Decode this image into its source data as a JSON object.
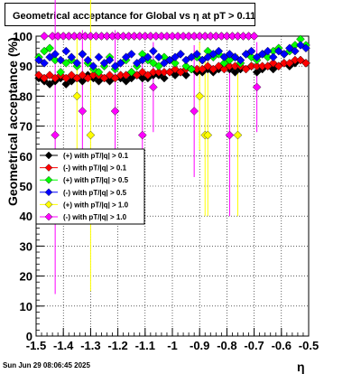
{
  "footer_timestamp": "Sun Jun 29 08:06:45 2025",
  "chart_data": {
    "type": "scatter",
    "title": "Geometrical acceptance for Global vs   η  at pT > 0.11",
    "xlabel": "η",
    "ylabel": "Geometrical acceptance (%)",
    "xlim": [
      -1.5,
      -0.5
    ],
    "ylim": [
      0,
      100
    ],
    "grid": true,
    "legend_position": "left-middle",
    "x_ticks": [
      "-1.5",
      "-1.4",
      "-1.3",
      "-1.2",
      "-1.1",
      "-1",
      "-0.9",
      "-0.8",
      "-0.7",
      "-0.6",
      "-0.5"
    ],
    "y_ticks": [
      "0",
      "10",
      "20",
      "30",
      "40",
      "50",
      "60",
      "70",
      "80",
      "90",
      "100"
    ],
    "series": [
      {
        "name": "(+) with pT/|q| > 0.1",
        "color": "#000000",
        "x": [
          -1.49,
          -1.47,
          -1.45,
          -1.43,
          -1.41,
          -1.39,
          -1.37,
          -1.35,
          -1.33,
          -1.31,
          -1.29,
          -1.27,
          -1.25,
          -1.23,
          -1.21,
          -1.19,
          -1.17,
          -1.15,
          -1.13,
          -1.11,
          -1.09,
          -1.07,
          -1.05,
          -1.03,
          -1.01,
          -0.99,
          -0.97,
          -0.95,
          -0.93,
          -0.91,
          -0.89,
          -0.87,
          -0.85,
          -0.83,
          -0.81,
          -0.79,
          -0.77,
          -0.75,
          -0.73,
          -0.71,
          -0.69,
          -0.67,
          -0.65,
          -0.63,
          -0.61,
          -0.59,
          -0.57,
          -0.55,
          -0.53,
          -0.51
        ],
        "y": [
          86,
          85,
          84,
          85,
          86,
          84,
          85,
          86,
          85,
          87,
          86,
          85,
          86,
          85,
          86,
          86,
          85,
          86,
          87,
          86,
          86,
          87,
          87,
          86,
          88,
          87,
          88,
          87,
          89,
          88,
          88,
          89,
          88,
          89,
          90,
          89,
          88,
          89,
          89,
          90,
          88,
          89,
          90,
          89,
          90,
          91,
          90,
          91,
          92,
          91
        ]
      },
      {
        "name": "(-) with pT/|q| > 0.1",
        "color": "#ff0000",
        "x": [
          -1.49,
          -1.47,
          -1.45,
          -1.43,
          -1.41,
          -1.39,
          -1.37,
          -1.35,
          -1.33,
          -1.31,
          -1.29,
          -1.27,
          -1.25,
          -1.23,
          -1.21,
          -1.19,
          -1.17,
          -1.15,
          -1.13,
          -1.11,
          -1.09,
          -1.07,
          -1.05,
          -1.03,
          -1.01,
          -0.99,
          -0.97,
          -0.95,
          -0.93,
          -0.91,
          -0.89,
          -0.87,
          -0.85,
          -0.83,
          -0.81,
          -0.79,
          -0.77,
          -0.75,
          -0.73,
          -0.71,
          -0.69,
          -0.67,
          -0.65,
          -0.63,
          -0.61,
          -0.59,
          -0.57,
          -0.55,
          -0.53,
          -0.51
        ],
        "y": [
          87,
          86,
          87,
          86,
          87,
          86,
          87,
          86,
          87,
          86,
          87,
          87,
          86,
          87,
          86,
          87,
          87,
          88,
          87,
          88,
          87,
          88,
          88,
          88,
          88,
          89,
          88,
          89,
          89,
          89,
          89,
          90,
          89,
          90,
          89,
          90,
          90,
          90,
          89,
          90,
          90,
          90,
          90,
          91,
          90,
          91,
          91,
          92,
          92,
          91
        ]
      },
      {
        "name": "(+) with pT/|q| > 0.5",
        "color": "#00ff00",
        "x": [
          -1.49,
          -1.47,
          -1.45,
          -1.43,
          -1.41,
          -1.39,
          -1.37,
          -1.35,
          -1.33,
          -1.31,
          -1.29,
          -1.27,
          -1.25,
          -1.23,
          -1.21,
          -1.19,
          -1.17,
          -1.15,
          -1.13,
          -1.11,
          -1.09,
          -1.07,
          -1.05,
          -1.03,
          -1.01,
          -0.99,
          -0.97,
          -0.95,
          -0.93,
          -0.91,
          -0.89,
          -0.87,
          -0.85,
          -0.83,
          -0.81,
          -0.79,
          -0.77,
          -0.75,
          -0.73,
          -0.71,
          -0.69,
          -0.67,
          -0.65,
          -0.63,
          -0.61,
          -0.59,
          -0.57,
          -0.55,
          -0.53,
          -0.51
        ],
        "y": [
          93,
          95,
          96,
          92,
          88,
          91,
          92,
          90,
          94,
          91,
          89,
          88,
          90,
          93,
          89,
          91,
          92,
          88,
          90,
          94,
          92,
          91,
          90,
          93,
          92,
          91,
          94,
          90,
          89,
          93,
          92,
          95,
          93,
          94,
          91,
          92,
          93,
          91,
          94,
          93,
          92,
          94,
          93,
          95,
          96,
          94,
          95,
          97,
          99,
          97
        ]
      },
      {
        "name": "(-) with pT/|q| > 0.5",
        "color": "#0000ff",
        "x": [
          -1.49,
          -1.47,
          -1.45,
          -1.43,
          -1.41,
          -1.39,
          -1.37,
          -1.35,
          -1.33,
          -1.31,
          -1.29,
          -1.27,
          -1.25,
          -1.23,
          -1.21,
          -1.19,
          -1.17,
          -1.15,
          -1.13,
          -1.11,
          -1.09,
          -1.07,
          -1.05,
          -1.03,
          -1.01,
          -0.99,
          -0.97,
          -0.95,
          -0.93,
          -0.91,
          -0.89,
          -0.87,
          -0.85,
          -0.83,
          -0.81,
          -0.79,
          -0.77,
          -0.75,
          -0.73,
          -0.71,
          -0.69,
          -0.67,
          -0.65,
          -0.63,
          -0.61,
          -0.59,
          -0.57,
          -0.55,
          -0.53,
          -0.51
        ],
        "y": [
          92,
          91,
          93,
          94,
          92,
          95,
          93,
          91,
          94,
          92,
          90,
          93,
          91,
          92,
          90,
          91,
          93,
          94,
          91,
          92,
          93,
          95,
          93,
          91,
          92,
          93,
          94,
          92,
          93,
          94,
          92,
          93,
          94,
          95,
          93,
          94,
          93,
          92,
          94,
          95,
          93,
          94,
          95,
          93,
          95,
          94,
          96,
          95,
          97,
          96
        ]
      },
      {
        "name": "(+) with pT/|q| > 1.0",
        "color": "#ffff00",
        "x": [
          -1.47,
          -1.44,
          -1.42,
          -1.4,
          -1.38,
          -1.36,
          -1.34,
          -1.32,
          -1.3,
          -1.28,
          -1.26,
          -1.24,
          -1.22,
          -1.2,
          -1.18,
          -1.16,
          -1.14,
          -1.12,
          -1.1,
          -1.08,
          -1.06,
          -1.04,
          -1.02,
          -1.0,
          -0.98,
          -0.96,
          -0.94,
          -0.92,
          -0.9,
          -0.88,
          -0.86,
          -0.84,
          -0.82,
          -0.8,
          -0.78,
          -0.76,
          -0.74,
          -0.72,
          -0.7
        ],
        "y": [
          100,
          100,
          100,
          100,
          100,
          100,
          100,
          100,
          100,
          100,
          100,
          100,
          100,
          100,
          100,
          100,
          100,
          100,
          100,
          100,
          100,
          100,
          100,
          100,
          100,
          100,
          100,
          100,
          100,
          100,
          100,
          100,
          100,
          100,
          100,
          100,
          100,
          100,
          100
        ]
      },
      {
        "name": "(-) with pT/|q| > 1.0",
        "color": "#ff00ff",
        "x": [
          -1.47,
          -1.44,
          -1.42,
          -1.4,
          -1.38,
          -1.36,
          -1.34,
          -1.32,
          -1.3,
          -1.28,
          -1.26,
          -1.24,
          -1.22,
          -1.2,
          -1.18,
          -1.16,
          -1.14,
          -1.12,
          -1.1,
          -1.08,
          -1.06,
          -1.04,
          -1.02,
          -1.0,
          -0.98,
          -0.96,
          -0.94,
          -0.92,
          -0.9,
          -0.88,
          -0.86,
          -0.84,
          -0.82,
          -0.8,
          -0.78,
          -0.76,
          -0.74,
          -0.72,
          -0.7
        ],
        "y": [
          100,
          100,
          100,
          100,
          100,
          100,
          100,
          100,
          100,
          100,
          100,
          100,
          100,
          100,
          100,
          100,
          100,
          100,
          100,
          100,
          100,
          100,
          100,
          100,
          100,
          100,
          100,
          100,
          100,
          100,
          100,
          100,
          100,
          100,
          100,
          100,
          100,
          100,
          100
        ]
      }
    ],
    "outliers": [
      {
        "series": 4,
        "x": -1.35,
        "y": 80,
        "err": 20
      },
      {
        "series": 4,
        "x": -1.3,
        "y": 67,
        "err": 52
      },
      {
        "series": 4,
        "x": -0.9,
        "y": 80,
        "err": 18
      },
      {
        "series": 4,
        "x": -0.88,
        "y": 67,
        "err": 27
      },
      {
        "series": 4,
        "x": -0.87,
        "y": 67,
        "err": 27
      },
      {
        "series": 4,
        "x": -0.76,
        "y": 67,
        "err": 27
      },
      {
        "series": 5,
        "x": -1.43,
        "y": 67,
        "err": 53
      },
      {
        "series": 5,
        "x": -1.33,
        "y": 75,
        "err": 27
      },
      {
        "series": 5,
        "x": -1.21,
        "y": 75,
        "err": 27
      },
      {
        "series": 5,
        "x": -1.11,
        "y": 67,
        "err": 27
      },
      {
        "series": 5,
        "x": -1.07,
        "y": 83,
        "err": 15
      },
      {
        "series": 5,
        "x": -0.92,
        "y": 75,
        "err": 22
      },
      {
        "series": 5,
        "x": -0.79,
        "y": 67,
        "err": 27
      },
      {
        "series": 5,
        "x": -0.69,
        "y": 83,
        "err": 15
      }
    ]
  }
}
